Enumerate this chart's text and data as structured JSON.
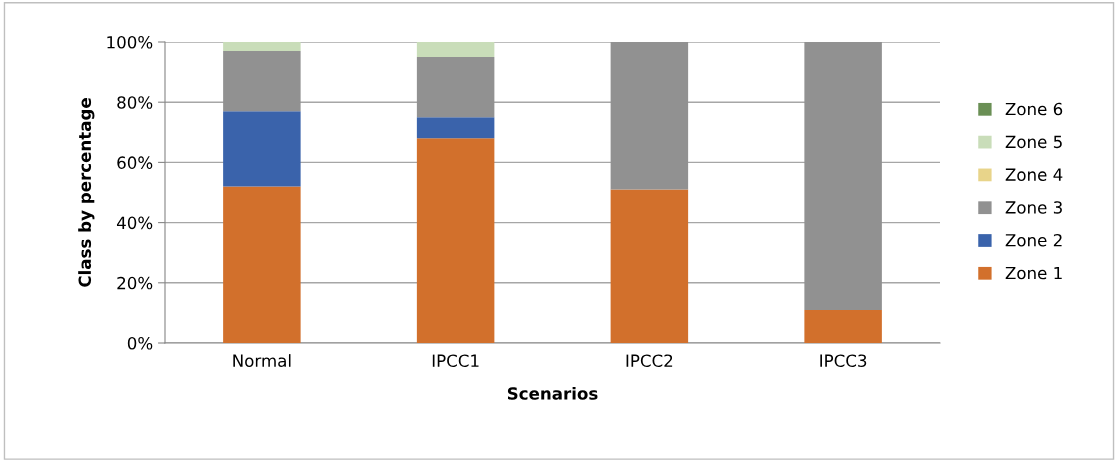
{
  "chart_data": {
    "type": "bar",
    "stacked": true,
    "xlabel": "Scenarios",
    "ylabel": "Class by percentage",
    "categories": [
      "Normal",
      "IPCC1",
      "IPCC2",
      "IPCC3"
    ],
    "series": [
      {
        "name": "Zone 1",
        "color": "#d2702c",
        "values": [
          52,
          68,
          51,
          11
        ]
      },
      {
        "name": "Zone 2",
        "color": "#3a63ab",
        "values": [
          25,
          7,
          0,
          0
        ]
      },
      {
        "name": "Zone 3",
        "color": "#919191",
        "values": [
          20,
          20,
          49,
          89
        ]
      },
      {
        "name": "Zone 4",
        "color": "#e8d48a",
        "values": [
          0,
          0,
          0,
          0
        ]
      },
      {
        "name": "Zone 5",
        "color": "#c9ddb9",
        "values": [
          3,
          5,
          0,
          0
        ]
      },
      {
        "name": "Zone 6",
        "color": "#6a8f55",
        "values": [
          0,
          0,
          0,
          0
        ]
      }
    ],
    "ylim": [
      0,
      100
    ],
    "yticks": [
      {
        "value": 0,
        "label": "0%"
      },
      {
        "value": 20,
        "label": "20%"
      },
      {
        "value": 40,
        "label": "40%"
      },
      {
        "value": 60,
        "label": "60%"
      },
      {
        "value": 80,
        "label": "80%"
      },
      {
        "value": 100,
        "label": "100%"
      }
    ],
    "grid": "y",
    "legend": "right"
  }
}
